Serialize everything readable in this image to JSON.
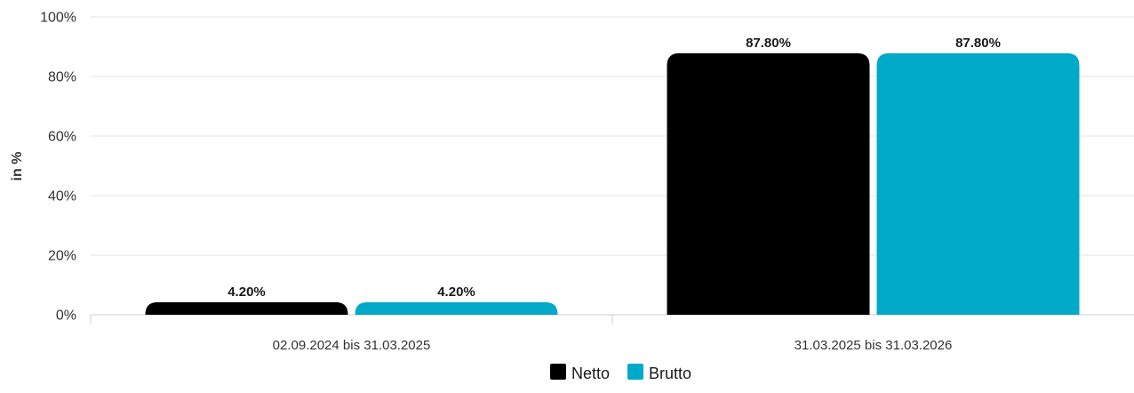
{
  "chart_data": {
    "type": "bar",
    "title": "",
    "xlabel": "",
    "ylabel": "in %",
    "ylim": [
      0,
      100
    ],
    "yticks": [
      "0%",
      "20%",
      "40%",
      "60%",
      "80%",
      "100%"
    ],
    "ytick_values": [
      0,
      20,
      40,
      60,
      80,
      100
    ],
    "categories": [
      "02.09.2024 bis 31.03.2025",
      "31.03.2025 bis 31.03.2026"
    ],
    "series": [
      {
        "name": "Netto",
        "color": "#000000",
        "values": [
          4.2,
          87.8
        ],
        "labels": [
          "4.20%",
          "87.80%"
        ]
      },
      {
        "name": "Brutto",
        "color": "#00a9c8",
        "values": [
          4.2,
          87.8
        ],
        "labels": [
          "4.20%",
          "87.80%"
        ]
      }
    ],
    "grid": true,
    "legend_position": "bottom-center"
  }
}
